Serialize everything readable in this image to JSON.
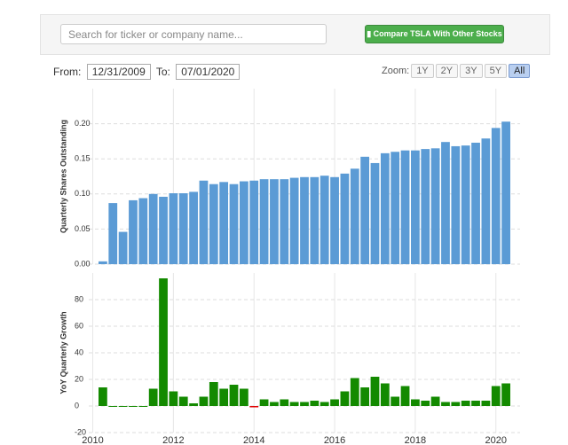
{
  "search_placeholder": "Search for ticker or company name...",
  "compare_button": "Compare TSLA With Other Stocks",
  "from_label": "From:",
  "from_date": "12/31/2009",
  "to_label": "To:",
  "to_date": "07/01/2020",
  "zoom_label": "Zoom:",
  "zoom_options": [
    "1Y",
    "2Y",
    "3Y",
    "5Y",
    "All"
  ],
  "zoom_selected": 4,
  "chart_data": [
    {
      "type": "bar",
      "y_label": "Quarterly Shares Outstanding",
      "x": [
        2010.25,
        2010.5,
        2010.75,
        2011,
        2011.25,
        2011.5,
        2011.75,
        2012,
        2012.25,
        2012.5,
        2012.75,
        2013,
        2013.25,
        2013.5,
        2013.75,
        2014,
        2014.25,
        2014.5,
        2014.75,
        2015,
        2015.25,
        2015.5,
        2015.75,
        2016,
        2016.25,
        2016.5,
        2016.75,
        2017,
        2017.25,
        2017.5,
        2017.75,
        2018,
        2018.25,
        2018.5,
        2018.75,
        2019,
        2019.25,
        2019.5,
        2019.75,
        2020,
        2020.25
      ],
      "values": [
        0.004,
        0.087,
        0.046,
        0.091,
        0.094,
        0.1,
        0.096,
        0.101,
        0.101,
        0.103,
        0.119,
        0.114,
        0.117,
        0.114,
        0.118,
        0.119,
        0.121,
        0.121,
        0.121,
        0.123,
        0.124,
        0.124,
        0.126,
        0.124,
        0.129,
        0.136,
        0.153,
        0.144,
        0.158,
        0.16,
        0.162,
        0.162,
        0.164,
        0.165,
        0.174,
        0.168,
        0.169,
        0.173,
        0.179,
        0.194,
        0.203
      ],
      "color": "#5b9bd5",
      "xlim": [
        2009.9,
        2020.6
      ],
      "xticks": [
        2010,
        2012,
        2014,
        2016,
        2018,
        2020
      ],
      "ylim": [
        0,
        0.25
      ],
      "yticks": [
        {
          "value": 0,
          "label": "0.00"
        },
        0.05,
        {
          "value": 0.1,
          "label": "0.10"
        },
        0.15,
        {
          "value": 0.2,
          "label": "0.20"
        }
      ],
      "grid": true
    },
    {
      "type": "bar",
      "y_label": "YoY Quarterly Growth",
      "x": [
        2010.25,
        2010.5,
        2010.75,
        2011,
        2011.25,
        2011.5,
        2011.75,
        2012,
        2012.25,
        2012.5,
        2012.75,
        2013,
        2013.25,
        2013.5,
        2013.75,
        2014,
        2014.25,
        2014.5,
        2014.75,
        2015,
        2015.25,
        2015.5,
        2015.75,
        2016,
        2016.25,
        2016.5,
        2016.75,
        2017,
        2017.25,
        2017.5,
        2017.75,
        2018,
        2018.25,
        2018.5,
        2018.75,
        2019,
        2019.25,
        2019.5,
        2019.75,
        2020,
        2020.25
      ],
      "values": [
        14,
        0,
        0,
        0,
        0,
        13,
        96,
        11,
        7,
        2,
        7,
        18,
        13,
        16,
        13,
        -1,
        5,
        3,
        5,
        3,
        3,
        4,
        3,
        5,
        11,
        21,
        14,
        22,
        17,
        7,
        15,
        5,
        4,
        7,
        3,
        3,
        4,
        4,
        4,
        15,
        17
      ],
      "color": "#138a00",
      "negative_color": "#e00000",
      "xlim": [
        2009.9,
        2020.6
      ],
      "xticks": [
        2010,
        2012,
        2014,
        2016,
        2018,
        2020
      ],
      "ylim": [
        -20,
        100
      ],
      "yticks": [
        -20,
        0,
        20,
        40,
        60,
        80
      ],
      "grid": true
    }
  ]
}
